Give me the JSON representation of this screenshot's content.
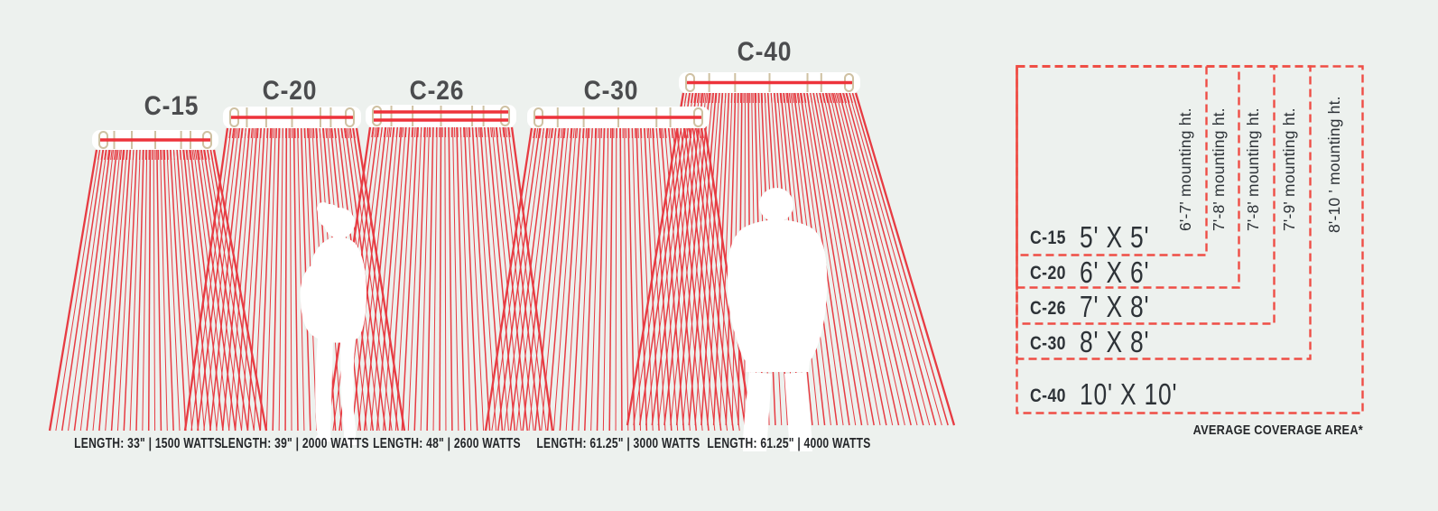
{
  "diagram": {
    "heaters": [
      {
        "model": "C-15",
        "spec": "LENGTH: 33\" | 1500 WATTS",
        "coverage": "5' X 5'",
        "mounting_height": "6'-7' mounting ht."
      },
      {
        "model": "C-20",
        "spec": "LENGTH: 39\" | 2000 WATTS",
        "coverage": "6' X 6'",
        "mounting_height": "7'-8' mounting ht."
      },
      {
        "model": "C-26",
        "spec": "LENGTH: 48\" | 2600 WATTS",
        "coverage": "7' X 8'",
        "mounting_height": "7'-8' mounting ht."
      },
      {
        "model": "C-30",
        "spec": "LENGTH: 61.25\" | 3000 WATTS",
        "coverage": "8' X 8'",
        "mounting_height": "7'-9' mounting ht."
      },
      {
        "model": "C-40",
        "spec": "LENGTH: 61.25\" | 4000 WATTS",
        "coverage": "10' X 10'",
        "mounting_height": "8'-10 ' mounting ht."
      }
    ],
    "coverage_chart": {
      "footnote": "AVERAGE COVERAGE AREA*"
    },
    "colors": {
      "background": "#edf1ee",
      "ray_red": "#e73b42",
      "heater_element_red": "#ed333b",
      "bracket_beige": "#cfc1a2",
      "dash_red": "#ef4e45",
      "label_gray": "#4b4c4e",
      "text_dark": "#2d3237"
    }
  }
}
